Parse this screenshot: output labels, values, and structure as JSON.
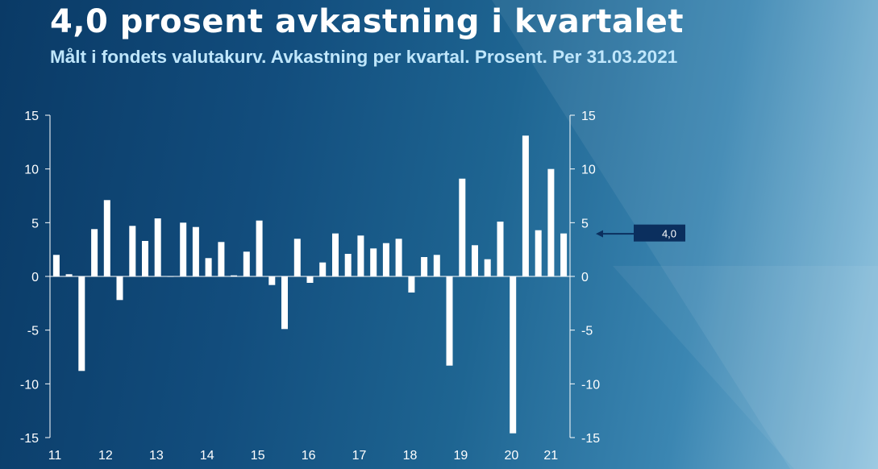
{
  "header": {
    "title": "4,0 prosent avkastning i kvartalet",
    "subtitle": "Målt i fondets valutakurv. Avkastning per kvartal. Prosent. Per 31.03.2021"
  },
  "colors": {
    "bar": "#ffffff",
    "axis": "#ffffff",
    "callout_box": "#0b2f5e",
    "background": "#124d7d"
  },
  "chart_data": {
    "type": "bar",
    "title": "4,0 prosent avkastning i kvartalet",
    "subtitle": "Målt i fondets valutakurv. Avkastning per kvartal. Prosent. Per 31.03.2021",
    "xlabel": "",
    "ylabel": "",
    "ylim": [
      -15,
      15
    ],
    "yticks": [
      "15",
      "10",
      "5",
      "0",
      "-5",
      "-10",
      "-15"
    ],
    "ytick_values": [
      15,
      10,
      5,
      0,
      -5,
      -10,
      -15
    ],
    "xtick_labels": [
      "11",
      "12",
      "13",
      "14",
      "15",
      "16",
      "17",
      "18",
      "19",
      "20",
      "21"
    ],
    "grid": false,
    "categories": [
      "2011Q1",
      "2011Q2",
      "2011Q3",
      "2011Q4",
      "2012Q1",
      "2012Q2",
      "2012Q3",
      "2012Q4",
      "2013Q1",
      "2013Q2",
      "2013Q3",
      "2013Q4",
      "2014Q1",
      "2014Q2",
      "2014Q3",
      "2014Q4",
      "2015Q1",
      "2015Q2",
      "2015Q3",
      "2015Q4",
      "2016Q1",
      "2016Q2",
      "2016Q3",
      "2016Q4",
      "2017Q1",
      "2017Q2",
      "2017Q3",
      "2017Q4",
      "2018Q1",
      "2018Q2",
      "2018Q3",
      "2018Q4",
      "2019Q1",
      "2019Q2",
      "2019Q3",
      "2019Q4",
      "2020Q1",
      "2020Q2",
      "2020Q3",
      "2020Q4",
      "2021Q1"
    ],
    "values": [
      2.0,
      0.2,
      -8.8,
      4.4,
      7.1,
      -2.2,
      4.7,
      3.3,
      5.4,
      0.0,
      5.0,
      4.6,
      1.7,
      3.2,
      0.1,
      2.3,
      5.2,
      -0.8,
      -4.9,
      3.5,
      -0.6,
      1.3,
      4.0,
      2.1,
      3.8,
      2.6,
      3.1,
      3.5,
      -1.5,
      1.8,
      2.0,
      -8.3,
      9.1,
      2.9,
      1.6,
      5.1,
      -14.6,
      13.1,
      4.3,
      10.0,
      4.0
    ],
    "annotation": {
      "label": "4,0",
      "value": 4.0,
      "category": "2021Q1"
    }
  }
}
